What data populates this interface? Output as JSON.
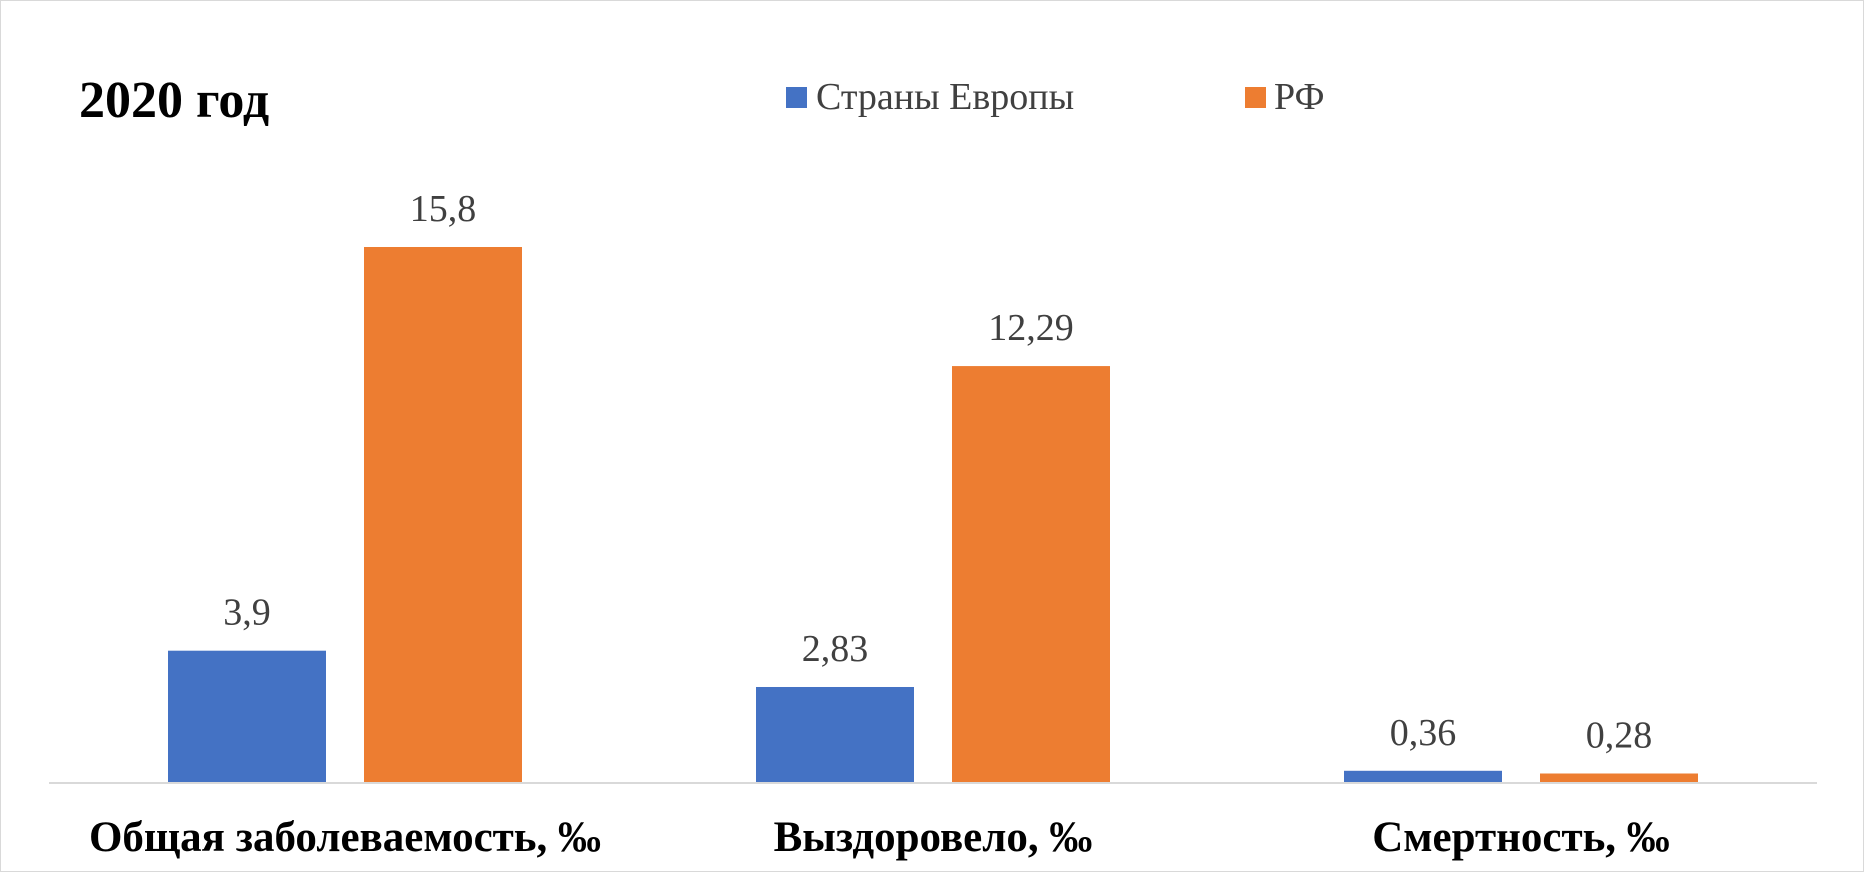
{
  "chart_data": {
    "type": "bar",
    "title": "2020 год",
    "categories": [
      "Общая заболеваемость, ‰",
      "Выздоровело, ‰",
      "Смертность, ‰"
    ],
    "series": [
      {
        "name": "Страны Европы",
        "color": "#4472C4",
        "values": [
          3.9,
          2.83,
          0.36
        ],
        "labels": [
          "3,9",
          "2,83",
          "0,36"
        ]
      },
      {
        "name": "РФ",
        "color": "#ED7D31",
        "values": [
          15.8,
          12.29,
          0.28
        ],
        "labels": [
          "15,8",
          "12,29",
          "0,28"
        ]
      }
    ],
    "ylim": [
      0,
      15.8
    ],
    "grid": false,
    "legend_position": "top"
  }
}
